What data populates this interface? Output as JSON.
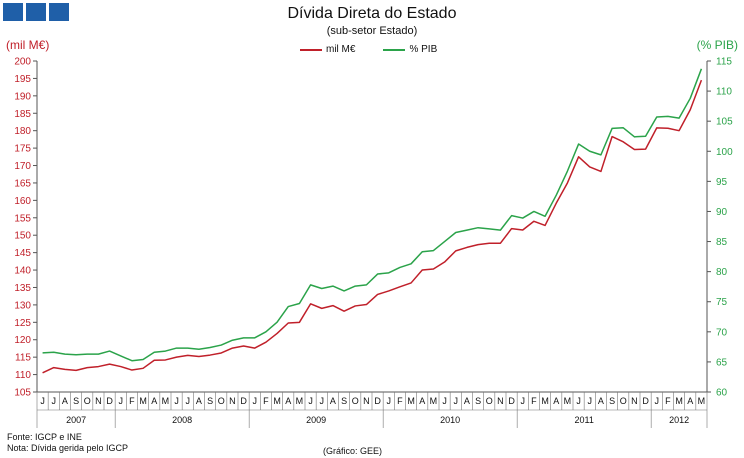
{
  "logo": {
    "blocks": 3,
    "color": "#1f5fa8"
  },
  "chart_data": {
    "type": "line",
    "title": "Dívida Direta do Estado",
    "subtitle": "(sub-setor  Estado)",
    "ylabel_left": "(mil M€)",
    "ylabel_right": "(% PIB)",
    "ylim_left": [
      105,
      200
    ],
    "ylim_right": [
      60,
      115
    ],
    "yticks_left": [
      "105",
      "110",
      "115",
      "120",
      "125",
      "130",
      "135",
      "140",
      "145",
      "150",
      "155",
      "160",
      "165",
      "170",
      "175",
      "180",
      "185",
      "190",
      "195",
      "200"
    ],
    "yticks_right": [
      "60",
      "65",
      "70",
      "75",
      "80",
      "85",
      "90",
      "95",
      "100",
      "105",
      "110",
      "115"
    ],
    "legend_position": "top-center",
    "months": [
      "J",
      "J",
      "A",
      "S",
      "O",
      "N",
      "D",
      "J",
      "F",
      "M",
      "A",
      "M",
      "J",
      "J",
      "A",
      "S",
      "O",
      "N",
      "D",
      "J",
      "F",
      "M",
      "A",
      "M",
      "J",
      "J",
      "A",
      "S",
      "O",
      "N",
      "D",
      "J",
      "F",
      "M",
      "A",
      "M",
      "J",
      "J",
      "A",
      "S",
      "O",
      "N",
      "D",
      "J",
      "F",
      "M",
      "A",
      "M",
      "J",
      "J",
      "A",
      "S",
      "O",
      "N",
      "D",
      "J",
      "F",
      "M",
      "A",
      "M"
    ],
    "years": [
      {
        "label": "2007",
        "start": 0,
        "count": 7
      },
      {
        "label": "2008",
        "start": 7,
        "count": 12
      },
      {
        "label": "2009",
        "start": 19,
        "count": 12
      },
      {
        "label": "2010",
        "start": 31,
        "count": 12
      },
      {
        "label": "2011",
        "start": 43,
        "count": 12
      },
      {
        "label": "2012",
        "start": 55,
        "count": 5
      }
    ],
    "series": [
      {
        "name": "mil M€",
        "axis": "left",
        "color": "#c0202a",
        "values": [
          110.5,
          112.0,
          111.5,
          111.2,
          112.0,
          112.3,
          113.0,
          112.3,
          111.3,
          111.8,
          114.1,
          114.2,
          115.0,
          115.5,
          115.2,
          115.6,
          116.2,
          117.6,
          118.2,
          117.6,
          119.3,
          121.8,
          124.8,
          125.0,
          130.3,
          129.0,
          129.8,
          128.2,
          129.7,
          130.1,
          133.0,
          134.0,
          135.2,
          136.3,
          140.0,
          140.3,
          142.3,
          145.5,
          146.5,
          147.3,
          147.7,
          147.7,
          151.9,
          151.5,
          154.0,
          152.8,
          159.2,
          165.0,
          172.5,
          169.6,
          168.3,
          178.3,
          176.8,
          174.6,
          174.7,
          180.8,
          180.7,
          180.0,
          186.0,
          194.5
        ]
      },
      {
        "name": "% PIB",
        "axis": "right",
        "color": "#2ba34a",
        "values": [
          66.5,
          66.6,
          66.3,
          66.2,
          66.3,
          66.3,
          66.8,
          66.0,
          65.2,
          65.4,
          66.6,
          66.8,
          67.3,
          67.3,
          67.1,
          67.4,
          67.8,
          68.6,
          69.0,
          69.0,
          70.0,
          71.6,
          74.2,
          74.7,
          77.8,
          77.2,
          77.6,
          76.8,
          77.6,
          77.8,
          79.6,
          79.8,
          80.7,
          81.3,
          83.3,
          83.5,
          85.0,
          86.5,
          86.9,
          87.3,
          87.1,
          86.9,
          89.3,
          88.9,
          90.0,
          89.2,
          92.7,
          96.7,
          101.2,
          100.0,
          99.4,
          103.8,
          103.9,
          102.4,
          102.5,
          105.7,
          105.8,
          105.5,
          108.8,
          113.7
        ]
      }
    ]
  },
  "footer": {
    "source": "Fonte: IGCP e INE",
    "note": "Nota: Dívida gerida pelo IGCP",
    "credit": "(Gráfico: GEE)"
  }
}
